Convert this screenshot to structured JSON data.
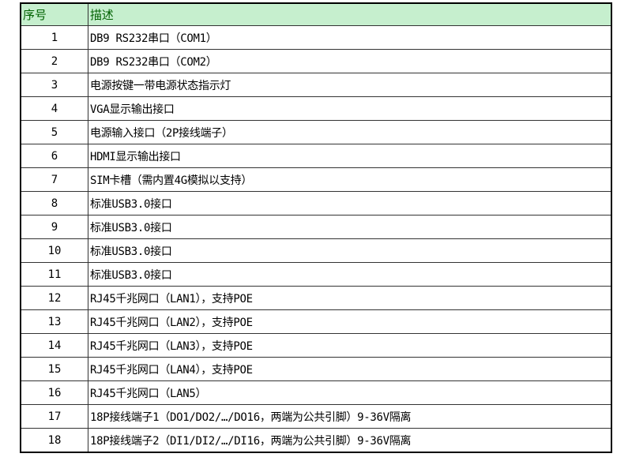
{
  "header": {
    "no": "序号",
    "desc": "描述"
  },
  "header_bg": "#c6efce",
  "header_text_color": "#006100",
  "rows": [
    {
      "no": "1",
      "desc": "DB9 RS232串口（COM1）"
    },
    {
      "no": "2",
      "desc": "DB9 RS232串口（COM2）"
    },
    {
      "no": "3",
      "desc": "电源按键一带电源状态指示灯"
    },
    {
      "no": "4",
      "desc": "VGA显示输出接口"
    },
    {
      "no": "5",
      "desc": "电源输入接口（2P接线端子）"
    },
    {
      "no": "6",
      "desc": "HDMI显示输出接口"
    },
    {
      "no": "7",
      "desc": "SIM卡槽（需内置4G模拟以支持）"
    },
    {
      "no": "8",
      "desc": "标准USB3.0接口"
    },
    {
      "no": "9",
      "desc": "标准USB3.0接口"
    },
    {
      "no": "10",
      "desc": "标准USB3.0接口"
    },
    {
      "no": "11",
      "desc": "标准USB3.0接口"
    },
    {
      "no": "12",
      "desc": "RJ45千兆网口（LAN1），支持POE"
    },
    {
      "no": "13",
      "desc": "RJ45千兆网口（LAN2），支持POE"
    },
    {
      "no": "14",
      "desc": "RJ45千兆网口（LAN3），支持POE"
    },
    {
      "no": "15",
      "desc": "RJ45千兆网口（LAN4），支持POE"
    },
    {
      "no": "16",
      "desc": "RJ45千兆网口（LAN5）"
    },
    {
      "no": "17",
      "desc": "18P接线端子1（DO1/DO2/…/DO16，两端为公共引脚）9-36V隔离"
    },
    {
      "no": "18",
      "desc": "18P接线端子2（DI1/DI2/…/DI16，两端为公共引脚）9-36V隔离"
    }
  ]
}
